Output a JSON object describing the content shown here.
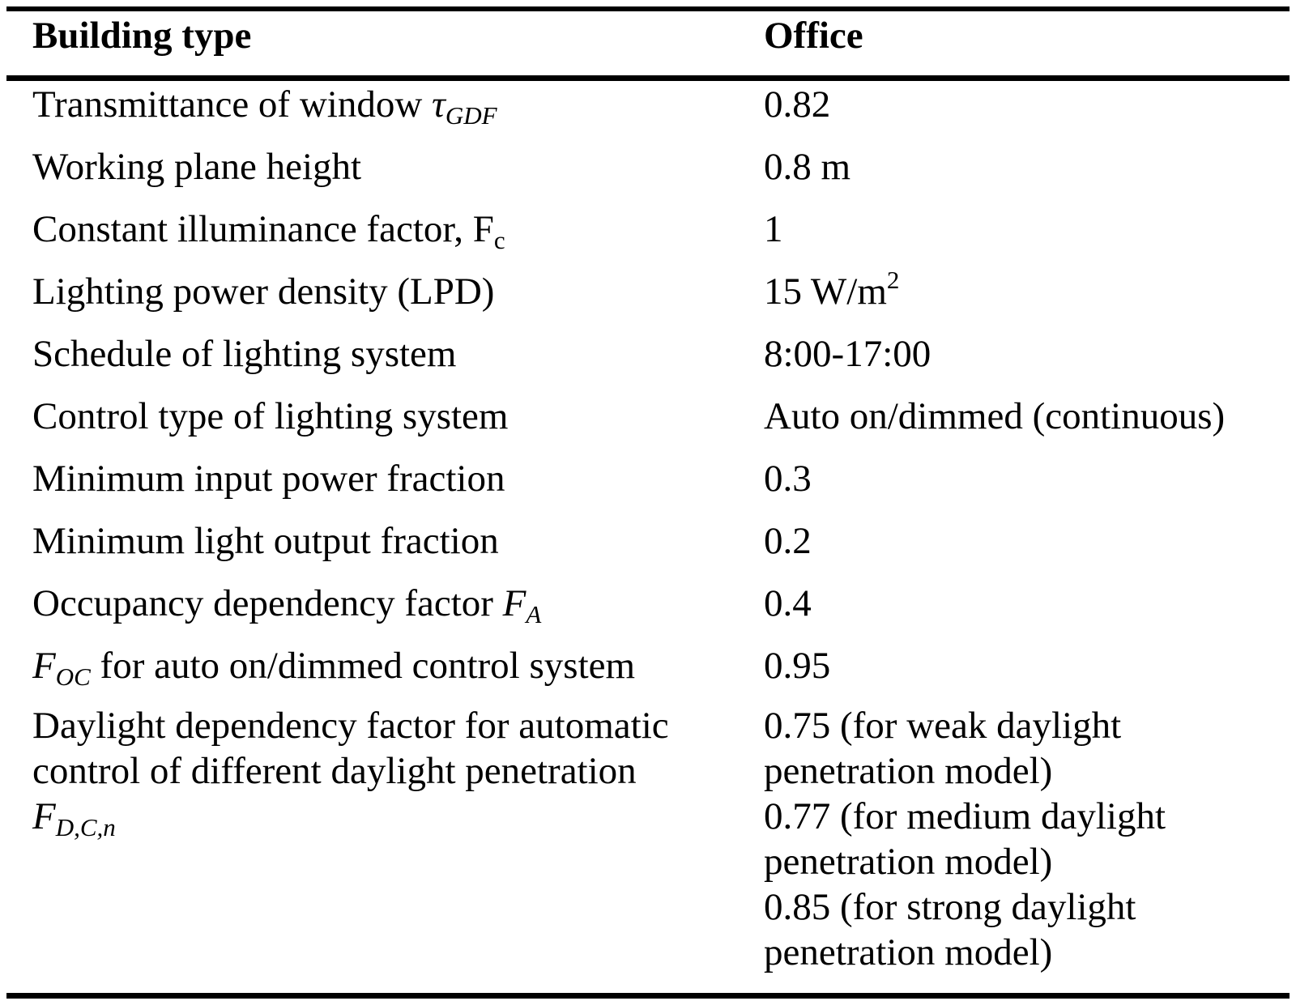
{
  "header": {
    "col1": "Building type",
    "col2": "Office"
  },
  "rows": [
    {
      "param_main": "Transmittance of window ",
      "param_sym": "τ",
      "param_sub": "GDF",
      "value": "0.82"
    },
    {
      "param": "Working plane height",
      "value": "0.8 m"
    },
    {
      "param_main": "Constant illuminance factor, F",
      "param_sub": "c",
      "value": "1"
    },
    {
      "param": "Lighting power density (LPD)",
      "value_main": "15 W/m",
      "value_sup": "2"
    },
    {
      "param": "Schedule of lighting system",
      "value": "8:00-17:00"
    },
    {
      "param": "Control type of lighting system",
      "value": "Auto on/dimmed (continuous)"
    },
    {
      "param": "Minimum input power fraction",
      "value": "0.3"
    },
    {
      "param": "Minimum light output fraction",
      "value": "0.2"
    },
    {
      "param_main": "Occupancy dependency factor ",
      "param_sym": "F",
      "param_sub": "A",
      "value": "0.4"
    },
    {
      "param_sym": "F",
      "param_sub": "OC",
      "param_rest": " for auto on/dimmed control system",
      "value": "0.95"
    },
    {
      "param_line1": "Daylight dependency factor for automatic",
      "param_line2": "control of different daylight penetration",
      "param_sym": "F",
      "param_sub": "D,C,n",
      "value_lines": [
        "0.75 (for weak daylight",
        "penetration model)",
        "0.77 (for medium daylight",
        "penetration model)",
        "0.85 (for strong daylight",
        "penetration model)"
      ]
    }
  ]
}
